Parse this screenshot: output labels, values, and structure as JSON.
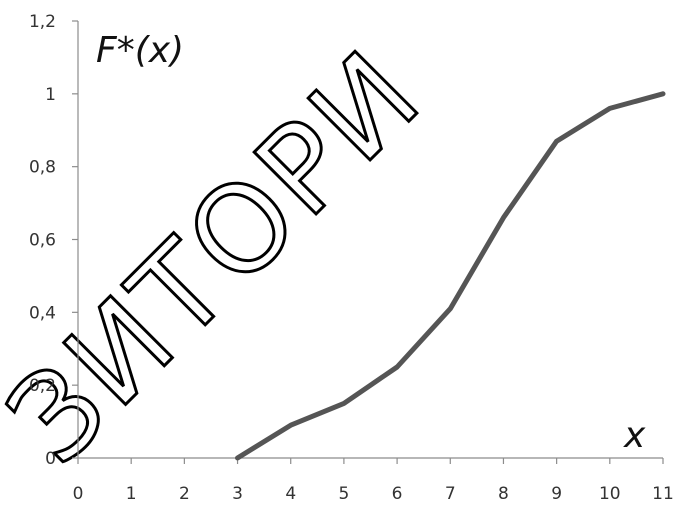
{
  "chart_data": {
    "type": "line",
    "title": "",
    "ylabel": "F*(x)",
    "xlabel": "x",
    "xlim": [
      0,
      11
    ],
    "ylim": [
      0,
      1.2
    ],
    "x_ticks": [
      "0",
      "1",
      "2",
      "3",
      "4",
      "5",
      "6",
      "7",
      "8",
      "9",
      "10",
      "11"
    ],
    "y_ticks": [
      "0",
      "0,2",
      "0,4",
      "0,6",
      "0,8",
      "1",
      "1,2"
    ],
    "grid": false,
    "series": [
      {
        "x": [
          3,
          4,
          5,
          6,
          7,
          8,
          9,
          10,
          11
        ],
        "y": [
          0,
          0.09,
          0.15,
          0.25,
          0.41,
          0.66,
          0.87,
          0.96,
          1.0
        ],
        "color": "#555555"
      }
    ]
  },
  "watermark": {
    "text": "ЗИТОРИ",
    "color": "#000000"
  }
}
